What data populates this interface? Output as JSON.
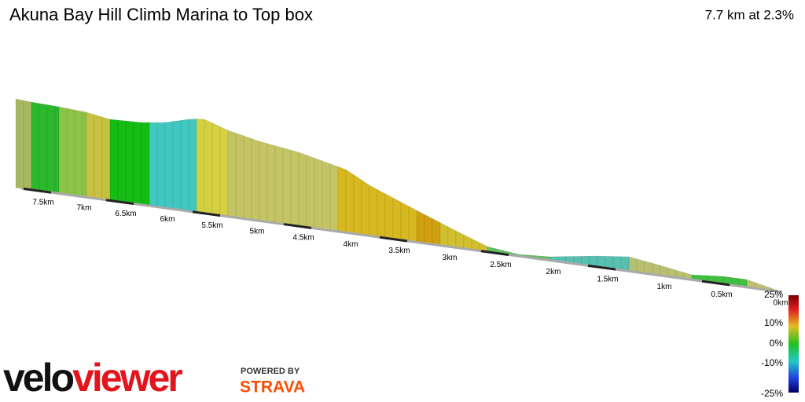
{
  "header": {
    "title": "Akuna Bay Hill Climb Marina to Top box",
    "summary": "7.7 km at 2.3%"
  },
  "distance_labels": [
    "7.5km",
    "7km",
    "6.5km",
    "6km",
    "5.5km",
    "5km",
    "4.5km",
    "4km",
    "3.5km",
    "3km",
    "2.5km",
    "2km",
    "1.5km",
    "1km",
    "0.5km",
    "0km"
  ],
  "gradient_legend": [
    "25%",
    "10%",
    "0%",
    "-10%",
    "-25%"
  ],
  "branding": {
    "logo_velo": "velo",
    "logo_viewer": "viewer",
    "powered_by": "POWERED BY",
    "strava": "STRAVA"
  }
}
